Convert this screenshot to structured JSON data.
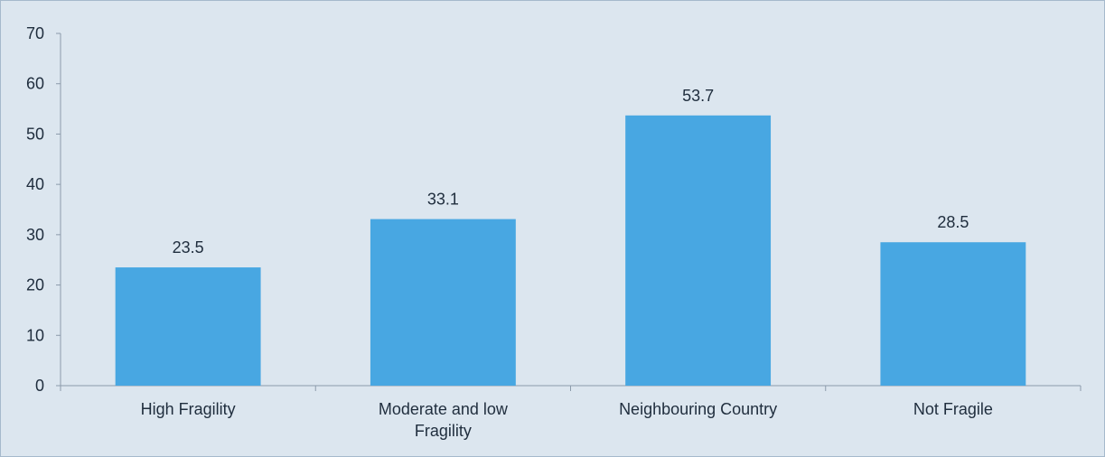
{
  "chart_data": {
    "type": "bar",
    "categories": [
      [
        "High Fragility"
      ],
      [
        "Moderate and low",
        "Fragility"
      ],
      [
        "Neighbouring Country"
      ],
      [
        "Not Fragile"
      ]
    ],
    "values": [
      23.5,
      33.1,
      53.7,
      28.5
    ],
    "value_labels": [
      "23.5",
      "33.1",
      "53.7",
      "28.5"
    ],
    "ylim": [
      0,
      70
    ],
    "yticks": [
      0,
      10,
      20,
      30,
      40,
      50,
      60,
      70
    ],
    "title": "",
    "xlabel": "",
    "ylabel": "",
    "grid": false,
    "legend": "none",
    "colors": {
      "bar": "#48a7e2",
      "axis": "#8c9bab",
      "background": "#dce6ef",
      "text": "#1f2d3d"
    }
  }
}
